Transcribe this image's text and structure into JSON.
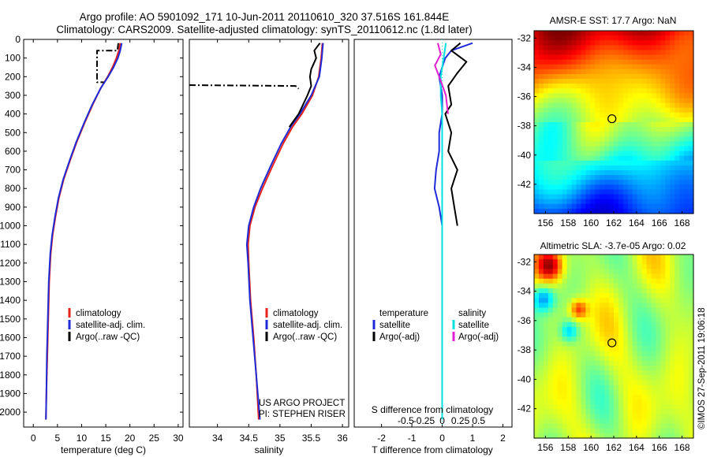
{
  "header": {
    "line1": "Argo profile: AO 5901092_171 10-Jun-2011 20110610_320 37.516S 161.844E",
    "line2": "Climatology: CARS2009. Satellite-adjusted climatology: synTS_20110612.nc (1.8d later)"
  },
  "credit": "©IMOS 27-Sep-2011 19:06:18",
  "colors": {
    "climatology": "#e8231c",
    "satellite": "#1f2bd6",
    "argo": "#000000",
    "salinity_satellite": "#00e0e0",
    "salinity_argo": "#e020d0"
  },
  "chart_data": [
    {
      "type": "line",
      "xlabel": "temperature (deg C)",
      "x_ticks": [
        "0",
        "5",
        "10",
        "15",
        "20",
        "25",
        "30"
      ],
      "xlim": [
        -2,
        31
      ],
      "y_ticks": [
        "0",
        "100",
        "200",
        "300",
        "400",
        "500",
        "600",
        "700",
        "800",
        "900",
        "1000",
        "1100",
        "1200",
        "1300",
        "1400",
        "1500",
        "1600",
        "1700",
        "1800",
        "1900",
        "2000"
      ],
      "ylim": [
        0,
        2080
      ],
      "y_inverted": true,
      "legend": [
        "climatology",
        "satellite-adj. clim.",
        "Argo(..raw -QC)"
      ],
      "legend_placement": "bottom-center",
      "series": [
        {
          "name": "climatology",
          "color": "#e8231c",
          "style": "solid",
          "points": [
            [
              18.0,
              20
            ],
            [
              17.7,
              60
            ],
            [
              17.2,
              100
            ],
            [
              16.4,
              150
            ],
            [
              15.4,
              200
            ],
            [
              14.0,
              260
            ],
            [
              12.3,
              350
            ],
            [
              10.6,
              450
            ],
            [
              9.0,
              550
            ],
            [
              7.6,
              650
            ],
            [
              6.3,
              750
            ],
            [
              5.3,
              850
            ],
            [
              4.6,
              950
            ],
            [
              4.0,
              1050
            ],
            [
              3.6,
              1150
            ],
            [
              3.3,
              1300
            ],
            [
              3.1,
              1500
            ],
            [
              2.9,
              1700
            ],
            [
              2.7,
              1900
            ],
            [
              2.6,
              2040
            ]
          ]
        },
        {
          "name": "satellite-adj. clim.",
          "color": "#1f2bd6",
          "style": "solid",
          "points": [
            [
              18.3,
              20
            ],
            [
              18.0,
              60
            ],
            [
              17.5,
              100
            ],
            [
              16.6,
              150
            ],
            [
              15.5,
              200
            ],
            [
              14.0,
              260
            ],
            [
              12.2,
              350
            ],
            [
              10.5,
              450
            ],
            [
              8.9,
              550
            ],
            [
              7.5,
              650
            ],
            [
              6.2,
              750
            ],
            [
              5.2,
              850
            ],
            [
              4.5,
              950
            ],
            [
              3.9,
              1050
            ],
            [
              3.5,
              1150
            ],
            [
              3.2,
              1300
            ],
            [
              3.0,
              1500
            ],
            [
              2.8,
              1700
            ],
            [
              2.7,
              1900
            ],
            [
              2.6,
              2040
            ]
          ]
        },
        {
          "name": "Argo(..raw -QC)",
          "color": "#000000",
          "style": "dashdot",
          "points": [
            [
              17.6,
              20
            ],
            [
              17.4,
              60
            ],
            [
              13.2,
              60
            ],
            [
              13.2,
              230
            ],
            [
              14.6,
              230
            ]
          ]
        }
      ]
    },
    {
      "type": "line",
      "xlabel": "salinity",
      "x_ticks": [
        "34",
        "34.5",
        "35",
        "35.5",
        "36"
      ],
      "xlim": [
        33.55,
        36.1
      ],
      "y_inverted": true,
      "ylim": [
        0,
        2080
      ],
      "legend": [
        "climatology",
        "satellite-adj. clim.",
        "Argo(..raw -QC)"
      ],
      "legend_placement": "bottom-center",
      "annotations": [
        "US ARGO PROJECT",
        "PI: STEPHEN RISER"
      ],
      "series": [
        {
          "name": "climatology",
          "color": "#e8231c",
          "style": "solid",
          "points": [
            [
              35.68,
              20
            ],
            [
              35.66,
              100
            ],
            [
              35.62,
              200
            ],
            [
              35.52,
              300
            ],
            [
              35.35,
              400
            ],
            [
              35.2,
              470
            ],
            [
              35.05,
              560
            ],
            [
              34.88,
              680
            ],
            [
              34.72,
              800
            ],
            [
              34.6,
              900
            ],
            [
              34.52,
              1000
            ],
            [
              34.49,
              1100
            ],
            [
              34.5,
              1200
            ],
            [
              34.53,
              1400
            ],
            [
              34.58,
              1600
            ],
            [
              34.62,
              1800
            ],
            [
              34.66,
              2040
            ]
          ]
        },
        {
          "name": "satellite-adj. clim.",
          "color": "#1f2bd6",
          "style": "solid",
          "points": [
            [
              35.69,
              20
            ],
            [
              35.67,
              100
            ],
            [
              35.63,
              200
            ],
            [
              35.5,
              300
            ],
            [
              35.32,
              400
            ],
            [
              35.17,
              470
            ],
            [
              35.02,
              560
            ],
            [
              34.85,
              680
            ],
            [
              34.69,
              800
            ],
            [
              34.58,
              900
            ],
            [
              34.5,
              1000
            ],
            [
              34.47,
              1100
            ],
            [
              34.49,
              1200
            ],
            [
              34.52,
              1400
            ],
            [
              34.57,
              1600
            ],
            [
              34.62,
              1800
            ],
            [
              34.68,
              2040
            ]
          ]
        },
        {
          "name": "Argo(..raw -QC)",
          "color": "#000000",
          "style": "solid",
          "points": [
            [
              35.64,
              20
            ],
            [
              35.55,
              60
            ],
            [
              35.58,
              100
            ],
            [
              35.5,
              160
            ],
            [
              35.48,
              200
            ],
            [
              35.5,
              250
            ],
            [
              35.44,
              300
            ],
            [
              35.3,
              400
            ],
            [
              35.15,
              470
            ]
          ]
        },
        {
          "name": "Argo(..raw -QC) spike",
          "color": "#000000",
          "style": "dashdot",
          "points": [
            [
              33.55,
              245
            ],
            [
              35.25,
              250
            ],
            [
              35.3,
              265
            ]
          ]
        }
      ]
    },
    {
      "type": "line",
      "xlabel": "T difference from climatology",
      "x_ticks": [
        "-2",
        "-1",
        "0",
        "1",
        "2"
      ],
      "xlim": [
        -2.9,
        2.3
      ],
      "top_axis_label": "S difference from climatology",
      "top_ticks": [
        "-0.5",
        "-0.25",
        "0",
        "0.25",
        "0.5"
      ],
      "y_inverted": true,
      "ylim": [
        0,
        2080
      ],
      "legend_groups": [
        {
          "title": "temperature",
          "items": [
            "satellite",
            "Argo(-adj)"
          ]
        },
        {
          "title": "salinity",
          "items": [
            "satellite",
            "Argo(-adj)"
          ]
        }
      ],
      "series": [
        {
          "name": "temperature satellite",
          "color": "#1f2bd6",
          "style": "solid",
          "points": [
            [
              1.0,
              20
            ],
            [
              0.3,
              60
            ],
            [
              0.1,
              100
            ],
            [
              0.0,
              150
            ],
            [
              -0.1,
              200
            ],
            [
              0.0,
              300
            ],
            [
              0.0,
              400
            ],
            [
              -0.1,
              500
            ],
            [
              -0.1,
              600
            ],
            [
              -0.2,
              700
            ],
            [
              -0.25,
              800
            ],
            [
              -0.1,
              900
            ],
            [
              0.0,
              1000
            ],
            [
              0.0,
              1100
            ],
            [
              0.0,
              1300
            ],
            [
              0.0,
              1500
            ],
            [
              0.0,
              1700
            ],
            [
              0.0,
              1900
            ],
            [
              0.0,
              2040
            ]
          ]
        },
        {
          "name": "temperature Argo(-adj)",
          "color": "#000000",
          "style": "solid",
          "points": [
            [
              0.6,
              20
            ],
            [
              0.3,
              60
            ],
            [
              0.8,
              120
            ],
            [
              0.5,
              180
            ],
            [
              0.2,
              250
            ],
            [
              0.3,
              350
            ],
            [
              0.1,
              400
            ],
            [
              0.3,
              500
            ],
            [
              0.2,
              600
            ],
            [
              0.5,
              700
            ],
            [
              0.3,
              800
            ],
            [
              0.4,
              900
            ],
            [
              0.5,
              1000
            ]
          ]
        },
        {
          "name": "salinity satellite",
          "color": "#00e0e0",
          "style": "solid",
          "points": [
            [
              0.05,
              20
            ],
            [
              0.02,
              100
            ],
            [
              -0.02,
              200
            ],
            [
              -0.02,
              300
            ],
            [
              0.0,
              400
            ],
            [
              0.0,
              600
            ],
            [
              0.0,
              800
            ],
            [
              0.0,
              1000
            ],
            [
              0.0,
              1200
            ],
            [
              0.0,
              1400
            ],
            [
              0.0,
              1600
            ],
            [
              0.0,
              1800
            ],
            [
              0.0,
              2040
            ]
          ]
        },
        {
          "name": "salinity Argo(-adj)",
          "color": "#e020d0",
          "style": "solid",
          "points": [
            [
              -0.06,
              20
            ],
            [
              -0.02,
              80
            ],
            [
              -0.1,
              140
            ],
            [
              -0.04,
              200
            ],
            [
              0.05,
              300
            ],
            [
              0.08,
              400
            ]
          ]
        }
      ]
    },
    {
      "type": "heatmap",
      "title": "AMSR-E SST: 17.7 Argo: NaN",
      "x_ticks": [
        "156",
        "158",
        "160",
        "162",
        "164",
        "166",
        "168"
      ],
      "xlim": [
        155,
        169
      ],
      "y_ticks": [
        "-32",
        "-34",
        "-36",
        "-38",
        "-40",
        "-42"
      ],
      "ylim": [
        -44,
        -31.5
      ],
      "marker": {
        "lon": 161.844,
        "lat": -37.516
      }
    },
    {
      "type": "heatmap",
      "title": "Altimetric SLA: -3.7e-05 Argo: 0.02",
      "x_ticks": [
        "156",
        "158",
        "160",
        "162",
        "164",
        "166",
        "168"
      ],
      "xlim": [
        155,
        169
      ],
      "y_ticks": [
        "-32",
        "-34",
        "-36",
        "-38",
        "-40",
        "-42"
      ],
      "ylim": [
        -44,
        -31.5
      ],
      "marker": {
        "lon": 161.844,
        "lat": -37.516
      }
    }
  ]
}
